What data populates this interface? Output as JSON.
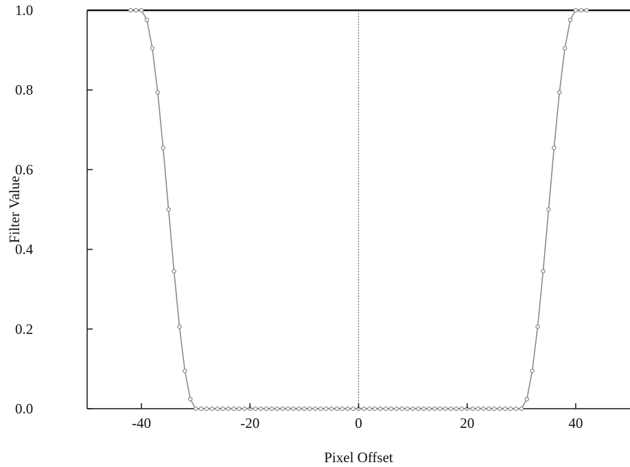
{
  "chart_data": {
    "type": "line",
    "title": "",
    "xlabel": "Pixel Offset",
    "ylabel": "Filter Value",
    "xlim": [
      -50,
      50
    ],
    "ylim": [
      0,
      1
    ],
    "x_ticks": [
      "-40",
      "-20",
      "0",
      "20",
      "40"
    ],
    "y_ticks": [
      "0.0",
      "0.2",
      "0.4",
      "0.6",
      "0.8",
      "1.0"
    ],
    "grid": false,
    "legend": "none",
    "reference_lines": [
      {
        "orientation": "vertical",
        "x": 0,
        "style": "dotted"
      },
      {
        "orientation": "horizontal",
        "y": 1.0,
        "style": "solid"
      }
    ],
    "series": [
      {
        "x": [
          -42,
          -41,
          -40,
          -39,
          -38,
          -37,
          -36,
          -35,
          -34,
          -33,
          -32,
          -31,
          -30,
          -29,
          -28,
          -27,
          -26,
          -25,
          -24,
          -23,
          -22,
          -21,
          -20,
          -19,
          -18,
          -17,
          -16,
          -15,
          -14,
          -13,
          -12,
          -11,
          -10,
          -9,
          -8,
          -7,
          -6,
          -5,
          -4,
          -3,
          -2,
          -1,
          0,
          1,
          2,
          3,
          4,
          5,
          6,
          7,
          8,
          9,
          10,
          11,
          12,
          13,
          14,
          15,
          16,
          17,
          18,
          19,
          20,
          21,
          22,
          23,
          24,
          25,
          26,
          27,
          28,
          29,
          30,
          31,
          32,
          33,
          34,
          35,
          36,
          37,
          38,
          39,
          40,
          41,
          42
        ],
        "y": [
          1.0,
          1.0,
          1.0,
          0.976,
          0.905,
          0.794,
          0.655,
          0.5,
          0.345,
          0.206,
          0.095,
          0.024,
          0.0,
          0.0,
          0.0,
          0.0,
          0.0,
          0.0,
          0.0,
          0.0,
          0.0,
          0.0,
          0.0,
          0.0,
          0.0,
          0.0,
          0.0,
          0.0,
          0.0,
          0.0,
          0.0,
          0.0,
          0.0,
          0.0,
          0.0,
          0.0,
          0.0,
          0.0,
          0.0,
          0.0,
          0.0,
          0.0,
          0.0,
          0.0,
          0.0,
          0.0,
          0.0,
          0.0,
          0.0,
          0.0,
          0.0,
          0.0,
          0.0,
          0.0,
          0.0,
          0.0,
          0.0,
          0.0,
          0.0,
          0.0,
          0.0,
          0.0,
          0.0,
          0.0,
          0.0,
          0.0,
          0.0,
          0.0,
          0.0,
          0.0,
          0.0,
          0.0,
          0.0,
          0.024,
          0.095,
          0.206,
          0.345,
          0.5,
          0.655,
          0.794,
          0.905,
          0.976,
          1.0,
          1.0,
          1.0
        ]
      }
    ],
    "colors": {
      "line": "#8a8a8a",
      "marker": "#8a8a8a",
      "axis": "#111111",
      "reference": "#555555"
    }
  }
}
